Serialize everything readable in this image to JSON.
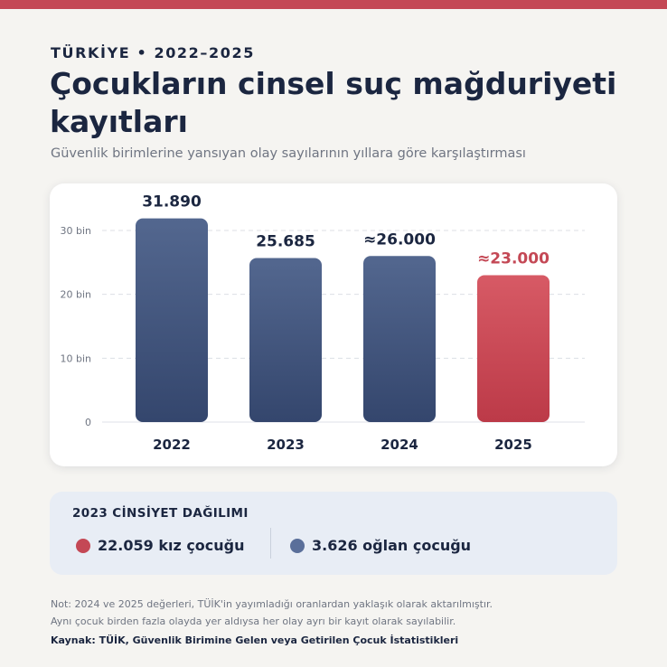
{
  "header": {
    "eyebrow": "TÜRKİYE • 2022–2025",
    "title": "Çocukların cinsel suç mağduriyeti kayıtları",
    "subtitle": "Güvenlik birimlerine yansıyan olay sayılarının yıllara göre karşılaştırması"
  },
  "colors": {
    "accent": "#c44855",
    "bar_blue_top": "#53678f",
    "bar_blue_bottom": "#34466d",
    "bar_red_top": "#d75a65",
    "bar_red_bottom": "#bc3a48",
    "dark": "#1b2640",
    "boy_dot": "#5a6f9a"
  },
  "chart_data": {
    "type": "bar",
    "categories": [
      "2022",
      "2023",
      "2024",
      "2025"
    ],
    "values": [
      31890,
      25685,
      26000,
      23000
    ],
    "value_labels": [
      "31.890",
      "25.685",
      "≈26.000",
      "≈23.000"
    ],
    "highlight_index": 3,
    "ylim": [
      0,
      30000
    ],
    "yticks": [
      0,
      10000,
      20000,
      30000
    ],
    "ytick_labels": [
      "0",
      "10 bin",
      "20 bin",
      "30 bin"
    ],
    "grid": true
  },
  "gender": {
    "title": "2023 CİNSİYET DAĞILIMI",
    "girls": "22.059 kız çocuğu",
    "boys": "3.626 oğlan çocuğu"
  },
  "footer": {
    "note_line1": "Not: 2024 ve 2025 değerleri, TÜİK'in yayımladığı oranlardan yaklaşık olarak aktarılmıştır.",
    "note_line2": "Aynı çocuk birden fazla olayda yer aldıysa her olay ayrı bir kayıt olarak sayılabilir.",
    "source": "Kaynak: TÜİK, Güvenlik Birimine Gelen veya Getirilen Çocuk İstatistikleri"
  }
}
